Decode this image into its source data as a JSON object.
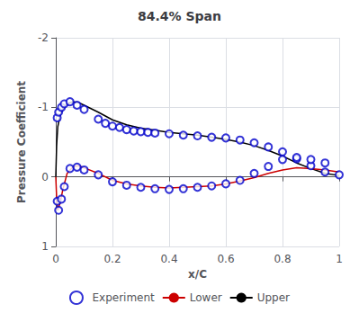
{
  "chart_data": {
    "type": "line",
    "title": "84.4% Span",
    "xlabel": "x/C",
    "ylabel": "Pressure Coefficient",
    "xlim": [
      0,
      1
    ],
    "ylim": [
      1,
      -2
    ],
    "xticks": [
      0,
      0.2,
      0.4,
      0.6,
      0.8,
      1
    ],
    "yticks": [
      -2,
      -1,
      0,
      1
    ],
    "grid": true,
    "legend": "bottom",
    "legend_order": [
      "Experiment",
      "Lower",
      "Upper"
    ],
    "series": [
      {
        "name": "Upper",
        "type": "line",
        "color": "#000000",
        "x": [
          0.0,
          0.003,
          0.007,
          0.015,
          0.025,
          0.04,
          0.06,
          0.08,
          0.1,
          0.15,
          0.2,
          0.25,
          0.3,
          0.35,
          0.4,
          0.45,
          0.5,
          0.55,
          0.6,
          0.65,
          0.7,
          0.75,
          0.8,
          0.85,
          0.9,
          0.95,
          1.0
        ],
        "values": [
          0.0,
          -0.45,
          -0.72,
          -0.88,
          -0.98,
          -1.05,
          -1.08,
          -1.07,
          -1.03,
          -0.93,
          -0.82,
          -0.75,
          -0.7,
          -0.67,
          -0.64,
          -0.62,
          -0.6,
          -0.57,
          -0.54,
          -0.5,
          -0.45,
          -0.38,
          -0.3,
          -0.2,
          -0.12,
          -0.05,
          -0.02
        ]
      },
      {
        "name": "Lower",
        "type": "line",
        "color": "#cc0000",
        "x": [
          0.0,
          0.003,
          0.007,
          0.015,
          0.025,
          0.04,
          0.06,
          0.08,
          0.1,
          0.15,
          0.2,
          0.25,
          0.3,
          0.35,
          0.4,
          0.45,
          0.5,
          0.55,
          0.6,
          0.65,
          0.7,
          0.75,
          0.8,
          0.85,
          0.9,
          0.95,
          1.0
        ],
        "values": [
          0.0,
          0.3,
          0.48,
          0.38,
          0.18,
          -0.05,
          -0.14,
          -0.16,
          -0.13,
          -0.05,
          0.05,
          0.1,
          0.13,
          0.15,
          0.16,
          0.15,
          0.14,
          0.13,
          0.1,
          0.06,
          0.01,
          -0.05,
          -0.1,
          -0.13,
          -0.12,
          -0.1,
          -0.07
        ]
      },
      {
        "name": "Experiment",
        "type": "scatter",
        "marker": "circle",
        "color": "#0000cc",
        "x": [
          0.005,
          0.01,
          0.02,
          0.03,
          0.05,
          0.075,
          0.1,
          0.15,
          0.175,
          0.2,
          0.225,
          0.25,
          0.275,
          0.3,
          0.325,
          0.35,
          0.4,
          0.45,
          0.5,
          0.55,
          0.6,
          0.65,
          0.7,
          0.75,
          0.8,
          0.85,
          0.9,
          0.95,
          1.0
        ],
        "values": [
          -0.85,
          -0.93,
          -1.0,
          -1.05,
          -1.08,
          -1.03,
          -0.97,
          -0.83,
          -0.77,
          -0.73,
          -0.71,
          -0.68,
          -0.66,
          -0.65,
          -0.64,
          -0.63,
          -0.62,
          -0.6,
          -0.59,
          -0.57,
          -0.56,
          -0.53,
          -0.49,
          -0.43,
          -0.36,
          -0.26,
          -0.16,
          -0.07,
          -0.03
        ]
      },
      {
        "name": "Experiment",
        "type": "scatter",
        "marker": "circle",
        "color": "#0000cc",
        "x": [
          0.005,
          0.01,
          0.02,
          0.03,
          0.05,
          0.075,
          0.1,
          0.15,
          0.2,
          0.25,
          0.3,
          0.35,
          0.4,
          0.45,
          0.5,
          0.55,
          0.6,
          0.65,
          0.7,
          0.75,
          0.8,
          0.85,
          0.9,
          0.95
        ],
        "values": [
          0.35,
          0.48,
          0.32,
          0.14,
          -0.12,
          -0.14,
          -0.1,
          -0.03,
          0.07,
          0.12,
          0.15,
          0.17,
          0.18,
          0.17,
          0.15,
          0.13,
          0.1,
          0.05,
          -0.05,
          -0.15,
          -0.25,
          -0.28,
          -0.25,
          -0.2
        ]
      }
    ]
  }
}
